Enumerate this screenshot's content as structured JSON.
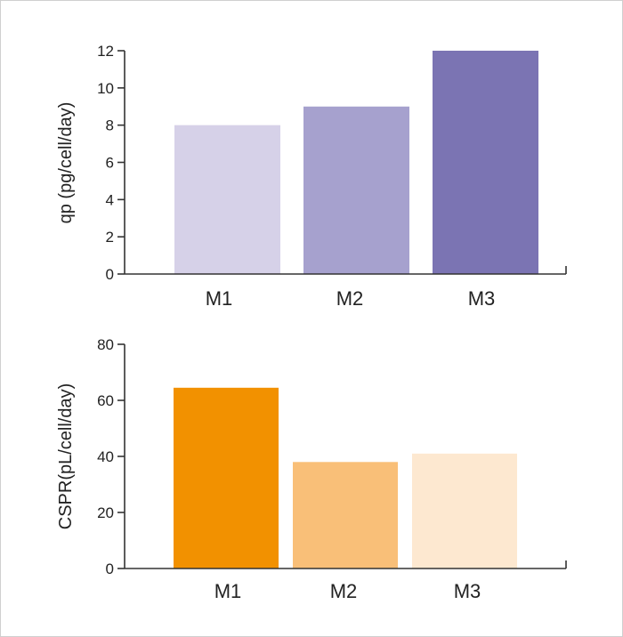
{
  "chart_data": [
    {
      "type": "bar",
      "categories": [
        "M1",
        "M2",
        "M3"
      ],
      "values": [
        8,
        9,
        12
      ],
      "colors": [
        "#d6d1e8",
        "#a6a1ce",
        "#7b74b3"
      ],
      "ylabel": "qp  (pg/cell/day)",
      "xlabel": "",
      "ylim": [
        0,
        12
      ],
      "yticks": [
        0,
        2,
        4,
        6,
        8,
        10,
        12
      ],
      "grid": false
    },
    {
      "type": "bar",
      "categories": [
        "M1",
        "M2",
        "M3"
      ],
      "values": [
        64.5,
        38,
        41
      ],
      "colors": [
        "#f29100",
        "#f9bf78",
        "#fde8d0"
      ],
      "ylabel": "CSPR(pL/cell/day)",
      "xlabel": "",
      "ylim": [
        0,
        80
      ],
      "yticks": [
        0,
        20,
        40,
        60,
        80
      ],
      "grid": false
    }
  ]
}
